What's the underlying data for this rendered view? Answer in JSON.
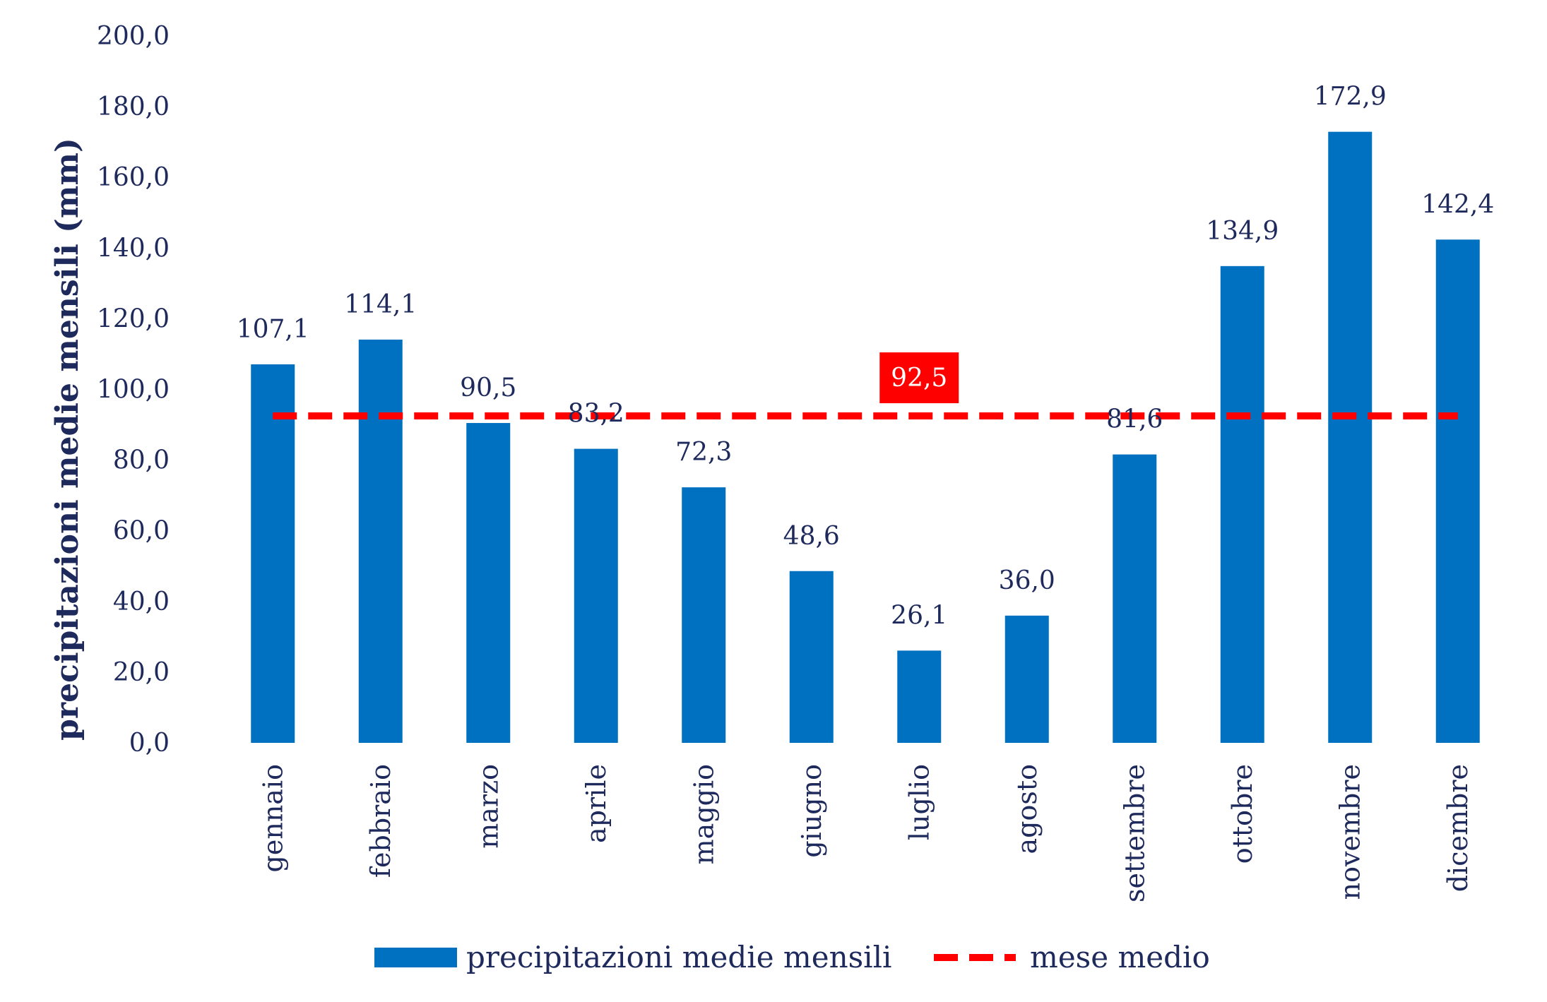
{
  "chart_data": {
    "type": "bar",
    "title": "",
    "xlabel": "",
    "ylabel": "precipitazioni medie mensili (mm)",
    "ylim": [
      0,
      200
    ],
    "ytick_step": 20,
    "y_tick_labels": [
      "0,0",
      "20,0",
      "40,0",
      "60,0",
      "80,0",
      "100,0",
      "120,0",
      "140,0",
      "160,0",
      "180,0",
      "200,0"
    ],
    "categories": [
      "gennaio",
      "febbraio",
      "marzo",
      "aprile",
      "maggio",
      "giugno",
      "luglio",
      "agosto",
      "settembre",
      "ottobre",
      "novembre",
      "dicembre"
    ],
    "series": [
      {
        "name": "precipitazioni medie mensili",
        "type": "bar",
        "color": "#0070c0",
        "values": [
          107.1,
          114.1,
          90.5,
          83.2,
          72.3,
          48.6,
          26.1,
          36.0,
          81.6,
          134.9,
          172.9,
          142.4
        ],
        "labels": [
          "107,1",
          "114,1",
          "90,5",
          "83,2",
          "72,3",
          "48,6",
          "26,1",
          "36,0",
          "81,6",
          "134,9",
          "172,9",
          "142,4"
        ]
      },
      {
        "name": "mese medio",
        "type": "line",
        "style": "dashed",
        "color": "#ff0000",
        "value": 92.5,
        "label": "92,5"
      }
    ],
    "grid": false,
    "legend_position": "bottom"
  }
}
